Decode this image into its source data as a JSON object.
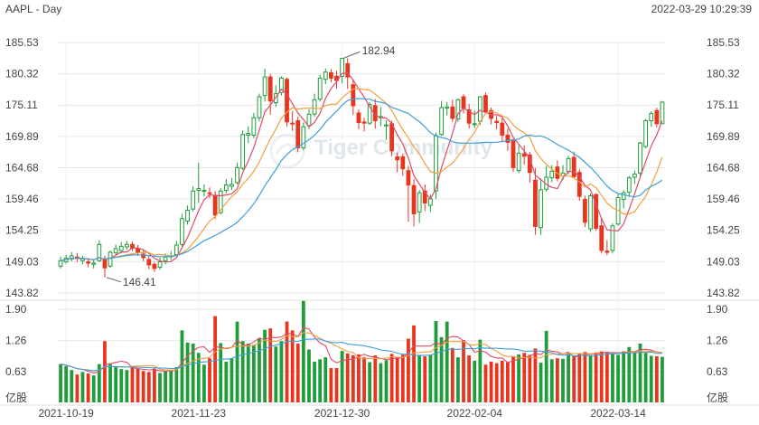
{
  "header": {
    "symbol": "AAPL - Day",
    "timestamp": "2022-03-29 10:29:39"
  },
  "watermark": "Tiger Community",
  "colors": {
    "up": "#1f9d3a",
    "down": "#e8351e",
    "ma5": "#e04a6a",
    "ma10": "#f0a040",
    "ma20": "#3f9fd8",
    "grid": "#e6e6e6"
  },
  "chart_data": [
    {
      "type": "candlestick",
      "ylim": [
        143.82,
        185.53
      ],
      "y_ticks": [
        "185.53",
        "180.32",
        "175.11",
        "169.89",
        "164.68",
        "159.46",
        "154.25",
        "149.03",
        "143.82"
      ],
      "x_ticks": [
        {
          "label": "2021-10-19",
          "index": 1
        },
        {
          "label": "2021-11-23",
          "index": 25
        },
        {
          "label": "2021-12-30",
          "index": 51
        },
        {
          "label": "2022-02-04",
          "index": 75
        },
        {
          "label": "2022-03-14",
          "index": 101
        }
      ],
      "annotations": [
        {
          "label": "182.94",
          "index": 51,
          "value": 182.94,
          "position": "high"
        },
        {
          "label": "146.41",
          "index": 8,
          "value": 146.41,
          "position": "low"
        }
      ],
      "series_lines": [
        "MA5",
        "MA10",
        "MA20"
      ],
      "candles": [
        [
          148.3,
          149.2,
          149.9,
          147.9
        ],
        [
          149.0,
          149.6,
          150.2,
          148.7
        ],
        [
          149.5,
          150.0,
          150.6,
          149.1
        ],
        [
          149.8,
          149.6,
          150.5,
          149.0
        ],
        [
          149.2,
          149.5,
          150.0,
          148.6
        ],
        [
          149.0,
          148.8,
          149.6,
          148.1
        ],
        [
          148.6,
          148.8,
          149.3,
          147.9
        ],
        [
          149.2,
          151.9,
          152.6,
          149.0
        ],
        [
          149.5,
          148.0,
          150.0,
          146.4
        ],
        [
          148.3,
          150.6,
          150.9,
          148.0
        ],
        [
          150.5,
          151.2,
          151.9,
          150.1
        ],
        [
          150.9,
          151.6,
          152.3,
          150.4
        ],
        [
          151.5,
          151.9,
          152.5,
          151.0
        ],
        [
          151.9,
          151.3,
          152.4,
          150.8
        ],
        [
          151.2,
          150.6,
          151.8,
          150.0
        ],
        [
          150.3,
          149.7,
          150.9,
          149.1
        ],
        [
          149.4,
          148.5,
          150.0,
          147.8
        ],
        [
          148.6,
          147.9,
          149.0,
          147.3
        ],
        [
          148.1,
          149.0,
          149.7,
          147.7
        ],
        [
          149.2,
          149.8,
          150.4,
          148.6
        ],
        [
          149.9,
          150.0,
          150.8,
          149.3
        ],
        [
          150.2,
          151.8,
          152.5,
          149.9
        ],
        [
          151.9,
          156.2,
          157.0,
          151.6
        ],
        [
          155.8,
          157.6,
          158.4,
          155.2
        ],
        [
          157.8,
          160.8,
          161.6,
          157.4
        ],
        [
          160.9,
          161.2,
          165.5,
          158.8
        ],
        [
          160.9,
          160.9,
          161.9,
          159.9
        ],
        [
          160.5,
          160.4,
          161.4,
          159.6
        ],
        [
          160.1,
          156.8,
          160.8,
          156.1
        ],
        [
          157.2,
          160.8,
          161.3,
          156.9
        ],
        [
          160.9,
          161.8,
          162.8,
          160.4
        ],
        [
          161.6,
          161.9,
          163.0,
          161.0
        ],
        [
          162.2,
          164.7,
          165.5,
          161.9
        ],
        [
          164.6,
          170.2,
          170.9,
          164.3
        ],
        [
          170.1,
          170.4,
          171.6,
          168.8
        ],
        [
          170.1,
          173.0,
          173.8,
          169.6
        ],
        [
          173.0,
          176.5,
          177.0,
          172.4
        ],
        [
          176.7,
          179.8,
          181.2,
          175.7
        ],
        [
          179.8,
          175.8,
          180.3,
          173.5
        ],
        [
          175.5,
          177.0,
          178.4,
          174.8
        ],
        [
          177.2,
          179.6,
          179.9,
          176.7
        ],
        [
          179.4,
          172.3,
          179.7,
          171.5
        ],
        [
          172.1,
          172.0,
          174.1,
          170.8
        ],
        [
          172.5,
          168.0,
          173.2,
          167.3
        ],
        [
          168.0,
          171.5,
          172.2,
          167.6
        ],
        [
          171.7,
          173.6,
          174.4,
          171.1
        ],
        [
          173.6,
          176.0,
          177.0,
          173.2
        ],
        [
          176.1,
          179.6,
          180.2,
          175.7
        ],
        [
          179.4,
          180.6,
          181.2,
          178.6
        ],
        [
          180.5,
          179.6,
          181.1,
          178.9
        ],
        [
          179.9,
          179.2,
          180.8,
          177.8
        ],
        [
          179.9,
          182.9,
          182.9,
          178.7
        ],
        [
          182.0,
          179.8,
          182.9,
          177.8
        ],
        [
          178.5,
          175.0,
          179.2,
          173.5
        ],
        [
          173.8,
          172.2,
          174.4,
          171.1
        ],
        [
          172.3,
          172.1,
          173.0,
          170.7
        ],
        [
          172.1,
          175.2,
          175.6,
          171.8
        ],
        [
          175.0,
          172.5,
          176.1,
          171.2
        ],
        [
          173.0,
          173.2,
          174.8,
          171.6
        ],
        [
          171.7,
          171.8,
          172.6,
          169.3
        ],
        [
          172.0,
          167.5,
          172.5,
          166.6
        ],
        [
          166.5,
          166.0,
          167.2,
          163.9
        ],
        [
          166.5,
          164.5,
          167.0,
          163.3
        ],
        [
          164.2,
          161.8,
          165.0,
          155.7
        ],
        [
          161.7,
          157.0,
          162.8,
          154.9
        ],
        [
          157.3,
          160.5,
          161.0,
          155.5
        ],
        [
          160.8,
          158.8,
          161.9,
          157.5
        ],
        [
          158.4,
          159.5,
          160.2,
          157.3
        ],
        [
          160.8,
          170.0,
          170.5,
          159.5
        ],
        [
          170.2,
          174.7,
          175.8,
          170.0
        ],
        [
          174.6,
          174.8,
          175.6,
          173.4
        ],
        [
          174.8,
          172.9,
          176.0,
          172.3
        ],
        [
          172.8,
          176.0,
          176.2,
          172.3
        ],
        [
          176.5,
          174.6,
          176.9,
          173.7
        ],
        [
          174.3,
          172.1,
          175.3,
          171.2
        ],
        [
          172.0,
          172.0,
          174.2,
          171.3
        ],
        [
          172.4,
          176.5,
          176.6,
          171.8
        ],
        [
          176.7,
          174.0,
          177.2,
          173.6
        ],
        [
          174.2,
          172.9,
          174.7,
          171.9
        ],
        [
          172.4,
          172.2,
          173.3,
          171.1
        ],
        [
          172.1,
          170.1,
          172.9,
          169.0
        ],
        [
          170.1,
          168.9,
          171.2,
          167.5
        ],
        [
          169.3,
          164.7,
          169.5,
          164.0
        ],
        [
          164.2,
          167.1,
          168.4,
          163.8
        ],
        [
          167.0,
          166.6,
          168.4,
          165.2
        ],
        [
          166.8,
          163.9,
          167.3,
          162.2
        ],
        [
          162.6,
          154.9,
          164.6,
          153.5
        ],
        [
          154.7,
          161.0,
          162.9,
          153.5
        ],
        [
          161.1,
          163.1,
          165.0,
          160.7
        ],
        [
          163.0,
          164.1,
          165.1,
          162.3
        ],
        [
          164.8,
          162.9,
          165.9,
          162.4
        ],
        [
          163.3,
          163.8,
          165.1,
          162.6
        ],
        [
          164.1,
          166.2,
          166.7,
          163.6
        ],
        [
          166.4,
          163.2,
          167.4,
          162.9
        ],
        [
          163.9,
          159.9,
          164.4,
          159.2
        ],
        [
          159.4,
          155.6,
          160.0,
          154.8
        ],
        [
          154.5,
          160.0,
          160.4,
          154.0
        ],
        [
          160.2,
          154.6,
          160.4,
          154.2
        ],
        [
          155.0,
          150.9,
          156.4,
          150.4
        ],
        [
          150.8,
          150.6,
          152.6,
          150.1
        ],
        [
          150.9,
          155.0,
          155.4,
          150.4
        ],
        [
          155.3,
          159.7,
          160.3,
          155.0
        ],
        [
          159.4,
          160.5,
          161.0,
          157.9
        ],
        [
          160.6,
          163.0,
          163.3,
          159.8
        ],
        [
          163.1,
          163.6,
          164.2,
          162.0
        ],
        [
          163.8,
          168.8,
          169.0,
          163.2
        ],
        [
          168.2,
          172.5,
          172.8,
          167.9
        ],
        [
          172.5,
          173.7,
          174.1,
          171.5
        ],
        [
          174.2,
          172.0,
          174.7,
          171.4
        ],
        [
          172.0,
          175.6,
          175.8,
          172.0
        ]
      ]
    },
    {
      "type": "bar",
      "label": "volume",
      "unit": "亿股",
      "ylim": [
        0.0,
        1.9
      ],
      "y_ticks": [
        "1.90",
        "1.26",
        "0.63"
      ],
      "unit_label": "亿股",
      "series_lines": [
        "MA5",
        "MA10",
        "MA20"
      ],
      "values": [
        0.78,
        0.74,
        0.66,
        0.57,
        0.62,
        0.59,
        0.55,
        0.78,
        1.25,
        0.78,
        0.72,
        0.68,
        0.66,
        0.71,
        0.69,
        0.64,
        0.62,
        0.69,
        0.6,
        0.64,
        0.66,
        0.72,
        1.47,
        1.22,
        1.2,
        1.01,
        0.77,
        0.9,
        1.76,
        1.21,
        0.83,
        0.9,
        1.65,
        1.25,
        1.2,
        1.17,
        1.3,
        1.48,
        1.51,
        1.14,
        1.25,
        1.65,
        1.47,
        1.2,
        2.07,
        1.08,
        0.83,
        0.88,
        0.92,
        0.7,
        0.7,
        1.05,
        1.0,
        0.96,
        0.98,
        0.92,
        0.82,
        0.96,
        0.8,
        0.86,
        0.99,
        0.93,
        0.97,
        1.3,
        1.57,
        0.97,
        0.94,
        0.97,
        1.66,
        1.33,
        1.65,
        1.11,
        0.92,
        1.27,
        0.96,
        0.85,
        1.28,
        0.77,
        0.83,
        0.8,
        0.85,
        0.82,
        0.94,
        0.98,
        1.01,
        0.97,
        1.1,
        0.81,
        1.46,
        0.88,
        0.9,
        0.89,
        1.0,
        0.95,
        1.0,
        1.03,
        0.97,
        1.02,
        1.04,
        1.03,
        1.0,
        0.97,
        1.04,
        1.13,
        1.04,
        1.2,
        1.01,
        0.95,
        0.94,
        0.93
      ]
    }
  ]
}
